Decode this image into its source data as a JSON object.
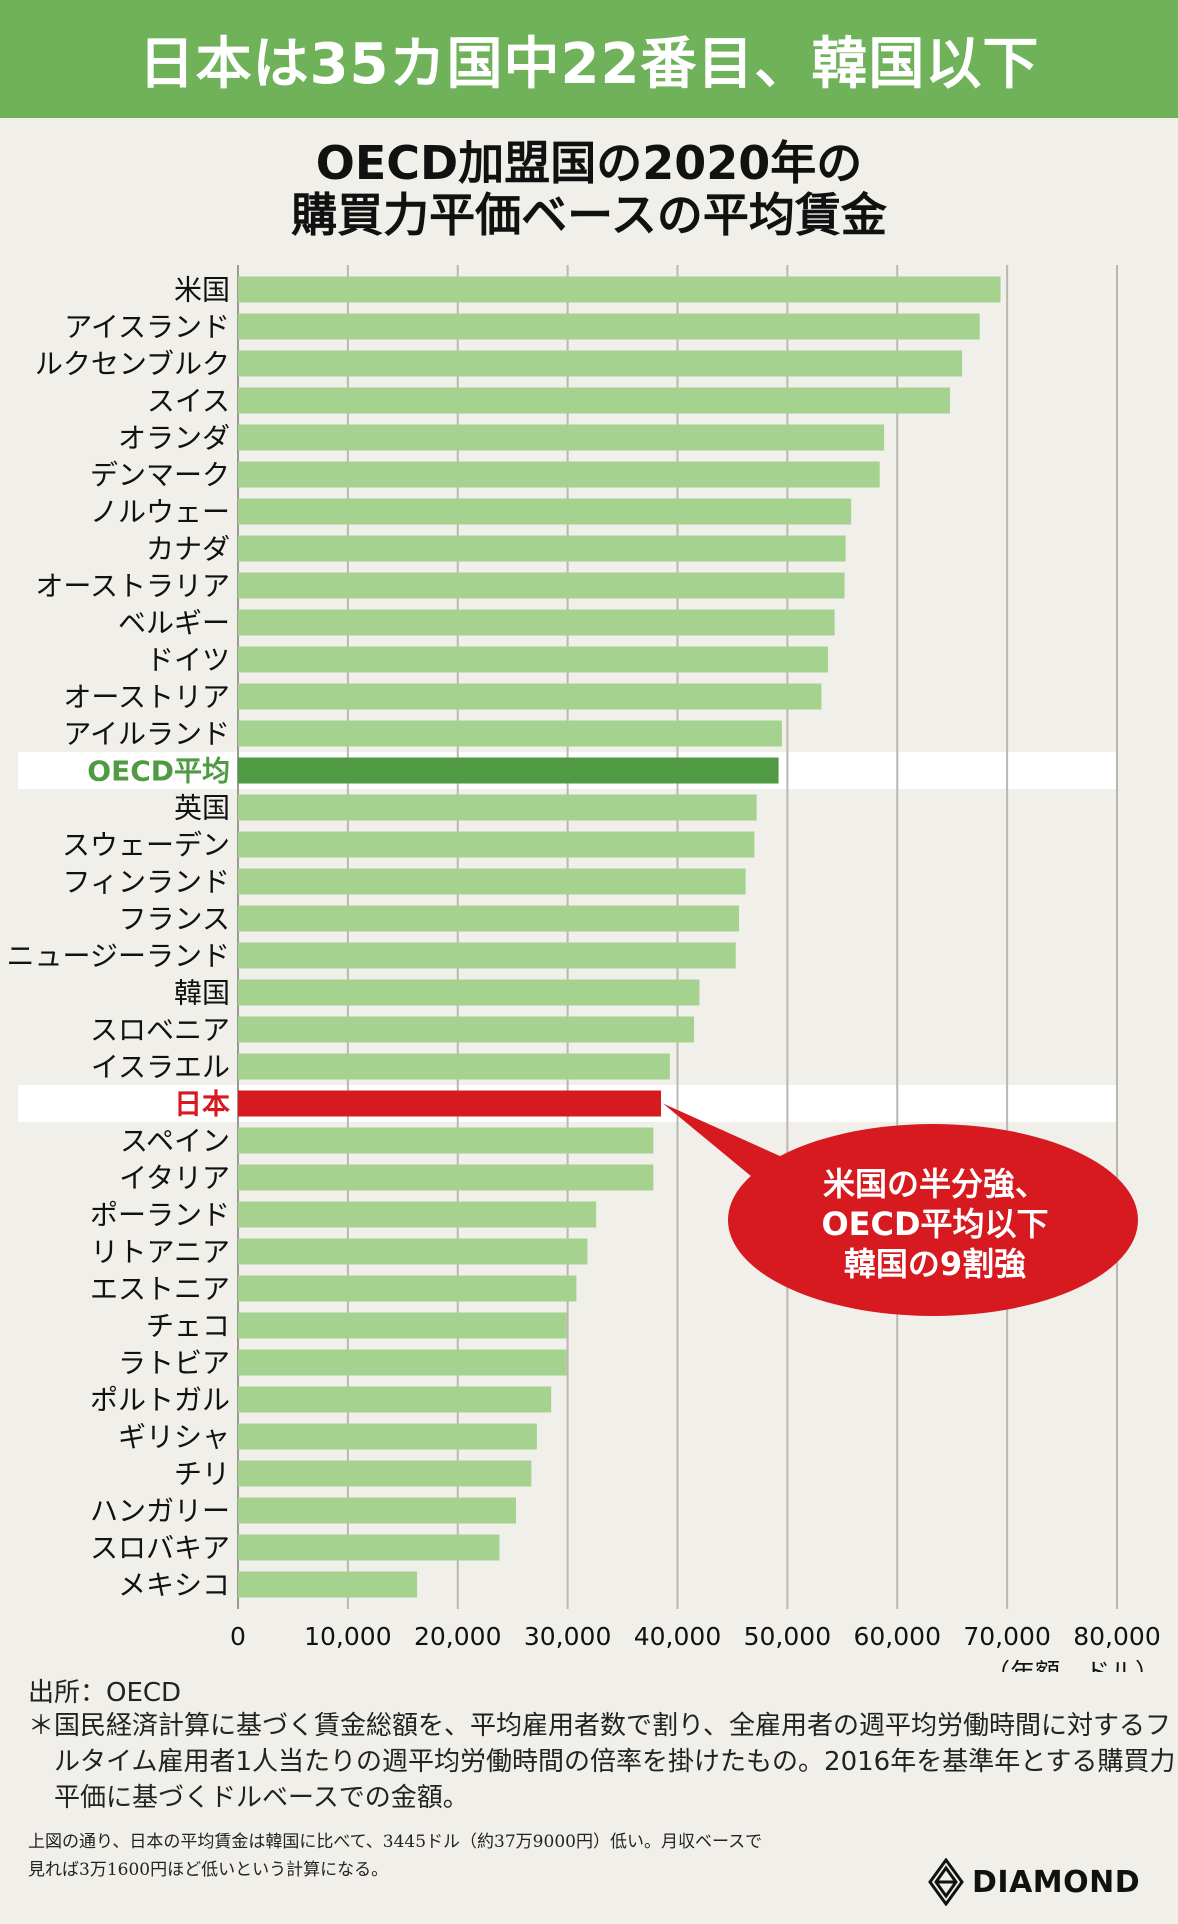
{
  "banner": {
    "text": "日本は35カ国中22番目、韓国以下"
  },
  "chart_data": {
    "type": "bar",
    "orientation": "horizontal",
    "title_line1": "OECD加盟国の2020年の",
    "title_line2": "購買力平価ベースの平均賃金",
    "unit_label": "（年額、ドル）",
    "xlim": [
      0,
      80000
    ],
    "x_ticks": [
      "0",
      "10,000",
      "20,000",
      "30,000",
      "40,000",
      "50,000",
      "60,000",
      "70,000",
      "80,000"
    ],
    "grid": true,
    "categories": [
      "米国",
      "アイスランド",
      "ルクセンブルク",
      "スイス",
      "オランダ",
      "デンマーク",
      "ノルウェー",
      "カナダ",
      "オーストラリア",
      "ベルギー",
      "ドイツ",
      "オーストリア",
      "アイルランド",
      "OECD平均",
      "英国",
      "スウェーデン",
      "フィンランド",
      "フランス",
      "ニュージーランド",
      "韓国",
      "スロベニア",
      "イスラエル",
      "日本",
      "スペイン",
      "イタリア",
      "ポーランド",
      "リトアニア",
      "エストニア",
      "チェコ",
      "ラトビア",
      "ポルトガル",
      "ギリシャ",
      "チリ",
      "ハンガリー",
      "スロバキア",
      "メキシコ"
    ],
    "values": [
      69400,
      67500,
      65900,
      64800,
      58800,
      58400,
      55800,
      55300,
      55200,
      54300,
      53700,
      53100,
      49500,
      49200,
      47200,
      47000,
      46200,
      45600,
      45300,
      42000,
      41500,
      39300,
      38500,
      37800,
      37800,
      32600,
      31800,
      30800,
      29900,
      29900,
      28500,
      27200,
      26700,
      25300,
      23800,
      16300
    ],
    "highlights": {
      "OECD平均": "#4f9a42",
      "日本": "#d71920"
    },
    "bar_color": "#a6d28f",
    "callout_lines": [
      "米国の半分強、",
      "OECD平均以下",
      "韓国の9割強"
    ]
  },
  "source_text": "出所：OECD",
  "note_text": "＊国民経済計算に基づく賃金総額を、平均雇用者数で割り、全雇用者の週平均労働時間に対するフルタイム雇用者1人当たりの週平均労働時間の倍率を掛けたもの。2016年を基準年とする購買力平価に基づくドルベースでの金額。",
  "footnote_line1": "上図の通り、日本の平均賃金は韓国に比べて、3445ドル（約37万9000円）低い。月収ベースで",
  "footnote_line2": "見れば3万1600円ほど低いという計算になる。",
  "logo_text": "DIAMOND"
}
